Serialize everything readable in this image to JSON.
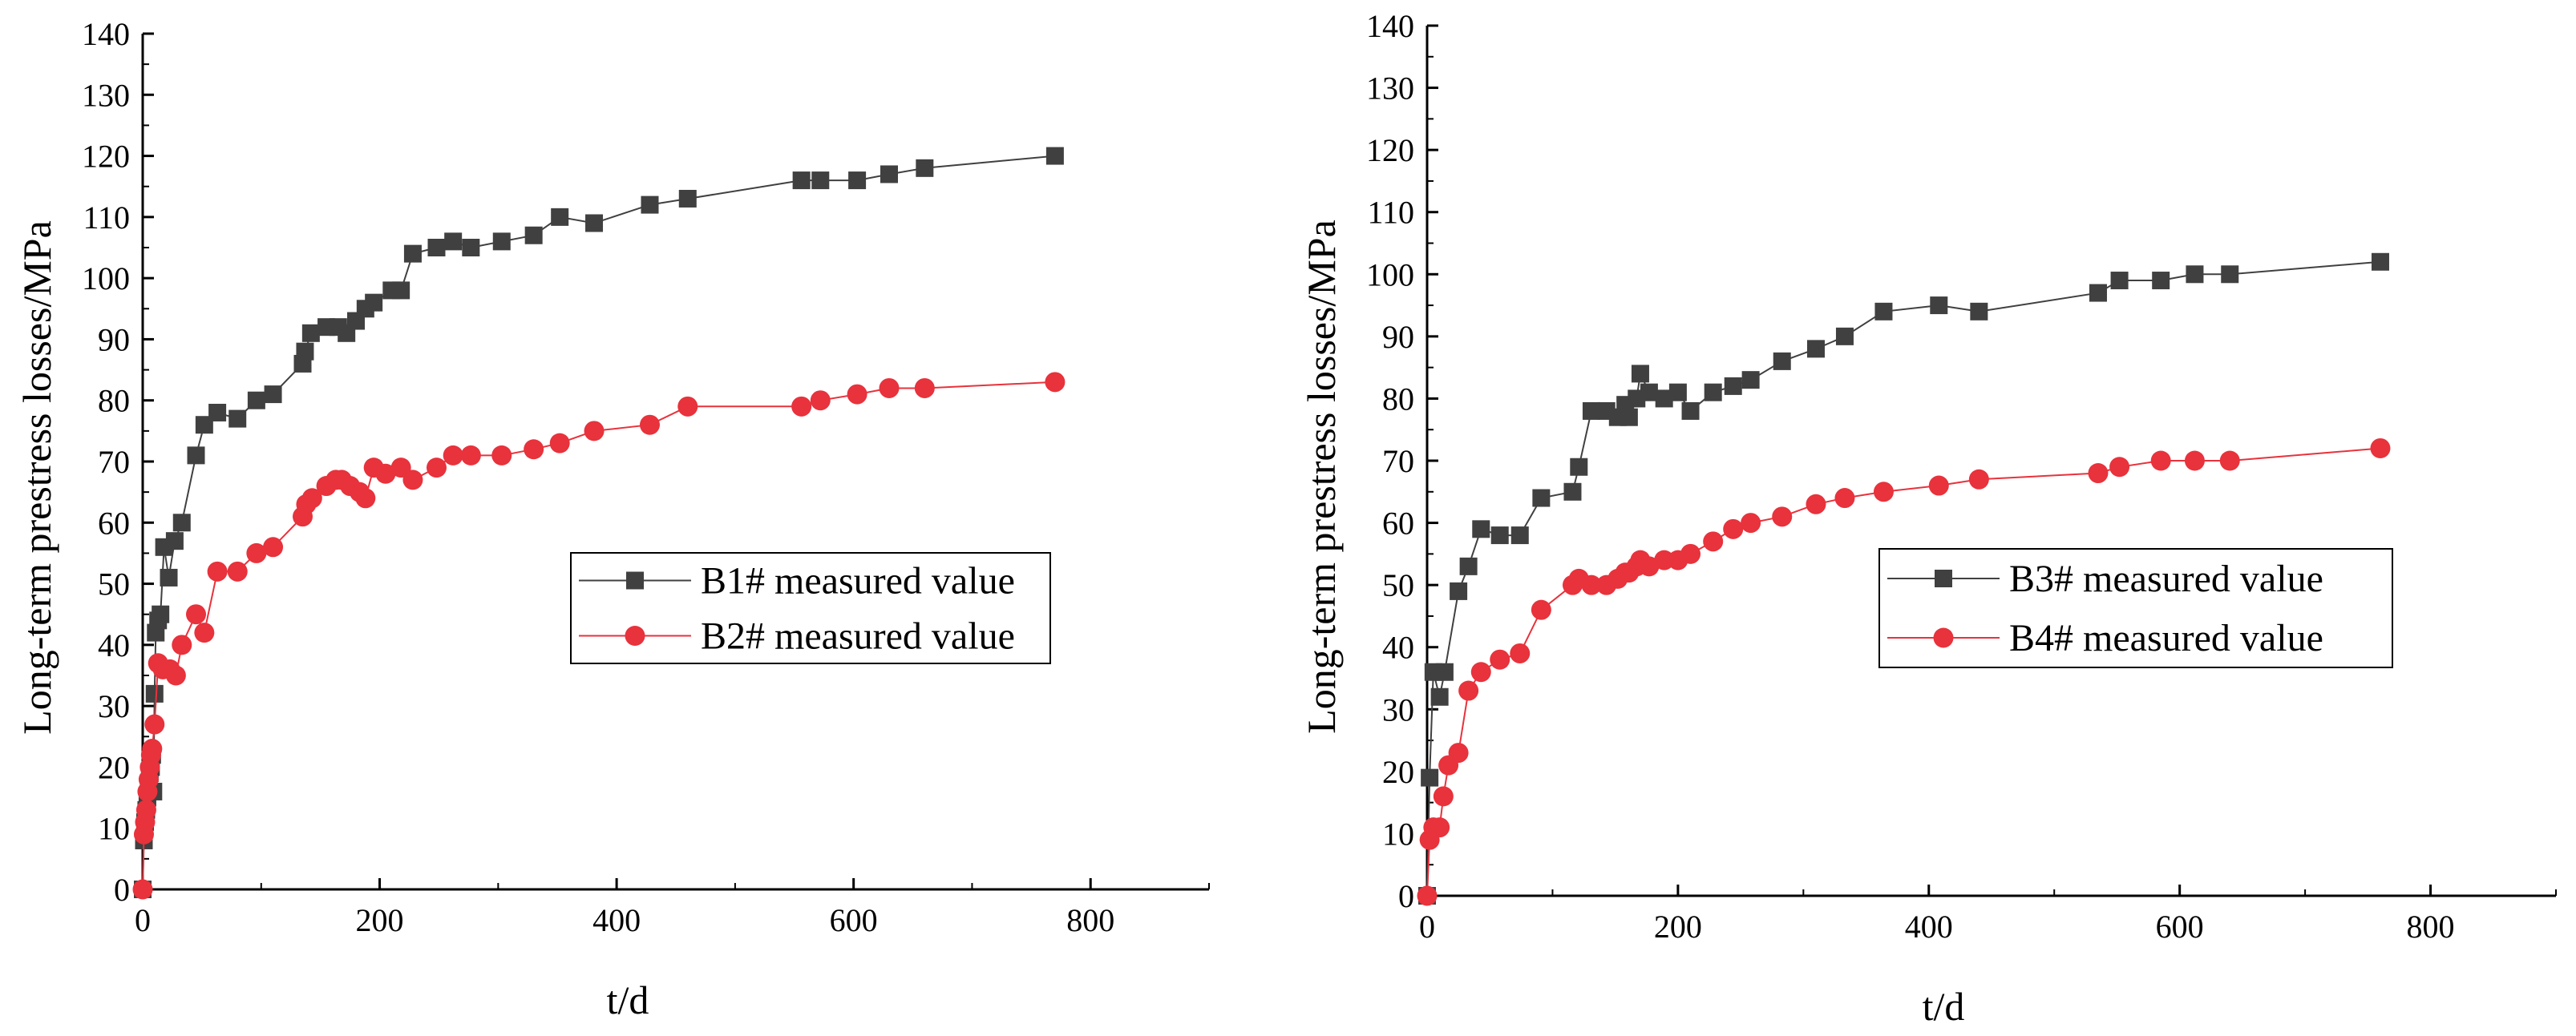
{
  "chart_data": [
    {
      "type": "scatter",
      "xlabel": "t/d",
      "ylabel": "Long-term prestress losses/MPa",
      "xlim": [
        0,
        900
      ],
      "ylim": [
        0,
        140
      ],
      "xticks": [
        0,
        200,
        400,
        600,
        800
      ],
      "yticks": [
        0,
        10,
        20,
        30,
        40,
        50,
        60,
        70,
        80,
        90,
        100,
        110,
        120,
        130,
        140
      ],
      "legend_position": "right-middle",
      "series": [
        {
          "name": "B1# measured value",
          "color": "#404040",
          "marker": "square",
          "points": [
            [
              0,
              0
            ],
            [
              1,
              8
            ],
            [
              2,
              11
            ],
            [
              3,
              13
            ],
            [
              4,
              15
            ],
            [
              5,
              17
            ],
            [
              6,
              19
            ],
            [
              7,
              20
            ],
            [
              8,
              22
            ],
            [
              9,
              16
            ],
            [
              10,
              32
            ],
            [
              11,
              42
            ],
            [
              13,
              44
            ],
            [
              15,
              45
            ],
            [
              18,
              56
            ],
            [
              22,
              51
            ],
            [
              27,
              57
            ],
            [
              33,
              60
            ],
            [
              45,
              71
            ],
            [
              52,
              76
            ],
            [
              63,
              78
            ],
            [
              80,
              77
            ],
            [
              96,
              80
            ],
            [
              110,
              81
            ],
            [
              135,
              86
            ],
            [
              137,
              88
            ],
            [
              142,
              91
            ],
            [
              155,
              92
            ],
            [
              165,
              92
            ],
            [
              172,
              91
            ],
            [
              180,
              93
            ],
            [
              188,
              95
            ],
            [
              195,
              96
            ],
            [
              210,
              98
            ],
            [
              218,
              98
            ],
            [
              228,
              104
            ],
            [
              248,
              105
            ],
            [
              262,
              106
            ],
            [
              277,
              105
            ],
            [
              303,
              106
            ],
            [
              330,
              107
            ],
            [
              352,
              110
            ],
            [
              381,
              109
            ],
            [
              428,
              112
            ],
            [
              460,
              113
            ],
            [
              556,
              116
            ],
            [
              572,
              116
            ],
            [
              603,
              116
            ],
            [
              630,
              117
            ],
            [
              660,
              118
            ],
            [
              770,
              120
            ]
          ]
        },
        {
          "name": "B2# measured value",
          "color": "#e8323c",
          "marker": "circle",
          "points": [
            [
              0,
              0
            ],
            [
              1,
              9
            ],
            [
              2,
              11
            ],
            [
              3,
              13
            ],
            [
              4,
              16
            ],
            [
              5,
              18
            ],
            [
              6,
              20
            ],
            [
              7,
              22
            ],
            [
              8,
              23
            ],
            [
              10,
              27
            ],
            [
              13,
              37
            ],
            [
              17,
              36
            ],
            [
              23,
              36
            ],
            [
              28,
              35
            ],
            [
              33,
              40
            ],
            [
              45,
              45
            ],
            [
              52,
              42
            ],
            [
              63,
              52
            ],
            [
              80,
              52
            ],
            [
              96,
              55
            ],
            [
              110,
              56
            ],
            [
              135,
              61
            ],
            [
              138,
              63
            ],
            [
              143,
              64
            ],
            [
              155,
              66
            ],
            [
              163,
              67
            ],
            [
              168,
              67
            ],
            [
              175,
              66
            ],
            [
              183,
              65
            ],
            [
              188,
              64
            ],
            [
              195,
              69
            ],
            [
              205,
              68
            ],
            [
              218,
              69
            ],
            [
              228,
              67
            ],
            [
              248,
              69
            ],
            [
              262,
              71
            ],
            [
              277,
              71
            ],
            [
              303,
              71
            ],
            [
              330,
              72
            ],
            [
              352,
              73
            ],
            [
              381,
              75
            ],
            [
              428,
              76
            ],
            [
              460,
              79
            ],
            [
              556,
              79
            ],
            [
              572,
              80
            ],
            [
              603,
              81
            ],
            [
              630,
              82
            ],
            [
              660,
              82
            ],
            [
              770,
              83
            ]
          ]
        }
      ]
    },
    {
      "type": "scatter",
      "xlabel": "t/d",
      "ylabel": "Long-term prestress losses/MPa",
      "xlim": [
        0,
        900
      ],
      "ylim": [
        0,
        140
      ],
      "xticks": [
        0,
        200,
        400,
        600,
        800
      ],
      "yticks": [
        0,
        10,
        20,
        30,
        40,
        50,
        60,
        70,
        80,
        90,
        100,
        110,
        120,
        130,
        140
      ],
      "legend_position": "right-middle",
      "series": [
        {
          "name": "B3# measured value",
          "color": "#404040",
          "marker": "square",
          "points": [
            [
              0,
              0
            ],
            [
              2,
              19
            ],
            [
              5,
              36
            ],
            [
              10,
              32
            ],
            [
              14,
              36
            ],
            [
              25,
              49
            ],
            [
              33,
              53
            ],
            [
              43,
              59
            ],
            [
              58,
              58
            ],
            [
              74,
              58
            ],
            [
              91,
              64
            ],
            [
              116,
              65
            ],
            [
              121,
              69
            ],
            [
              131,
              78
            ],
            [
              143,
              78
            ],
            [
              152,
              77
            ],
            [
              158,
              79
            ],
            [
              161,
              77
            ],
            [
              167,
              80
            ],
            [
              170,
              84
            ],
            [
              177,
              81
            ],
            [
              189,
              80
            ],
            [
              200,
              81
            ],
            [
              210,
              78
            ],
            [
              228,
              81
            ],
            [
              244,
              82
            ],
            [
              258,
              83
            ],
            [
              283,
              86
            ],
            [
              310,
              88
            ],
            [
              333,
              90
            ],
            [
              364,
              94
            ],
            [
              408,
              95
            ],
            [
              440,
              94
            ],
            [
              535,
              97
            ],
            [
              552,
              99
            ],
            [
              585,
              99
            ],
            [
              612,
              100
            ],
            [
              640,
              100
            ],
            [
              760,
              102
            ]
          ]
        },
        {
          "name": "B4# measured value",
          "color": "#e8323c",
          "marker": "circle",
          "points": [
            [
              0,
              0
            ],
            [
              2,
              9
            ],
            [
              5,
              11
            ],
            [
              10,
              11
            ],
            [
              13,
              16
            ],
            [
              17,
              21
            ],
            [
              25,
              23
            ],
            [
              33,
              33
            ],
            [
              43,
              36
            ],
            [
              58,
              38
            ],
            [
              74,
              39
            ],
            [
              91,
              46
            ],
            [
              116,
              50
            ],
            [
              121,
              51
            ],
            [
              131,
              50
            ],
            [
              143,
              50
            ],
            [
              152,
              51
            ],
            [
              158,
              52
            ],
            [
              161,
              52
            ],
            [
              167,
              53
            ],
            [
              170,
              54
            ],
            [
              177,
              53
            ],
            [
              189,
              54
            ],
            [
              200,
              54
            ],
            [
              210,
              55
            ],
            [
              228,
              57
            ],
            [
              244,
              59
            ],
            [
              258,
              60
            ],
            [
              283,
              61
            ],
            [
              310,
              63
            ],
            [
              333,
              64
            ],
            [
              364,
              65
            ],
            [
              408,
              66
            ],
            [
              440,
              67
            ],
            [
              535,
              68
            ],
            [
              552,
              69
            ],
            [
              585,
              70
            ],
            [
              612,
              70
            ],
            [
              640,
              70
            ],
            [
              760,
              72
            ]
          ]
        }
      ]
    }
  ]
}
